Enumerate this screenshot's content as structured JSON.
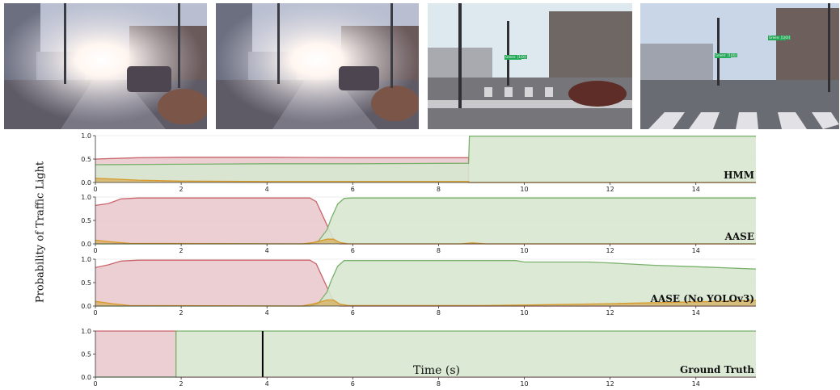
{
  "figure": {
    "ylabel": "Probability of Traffic Light",
    "xlabel": "Time (s)"
  },
  "photos": [
    {
      "scene": "sun-glare-street-1"
    },
    {
      "scene": "sun-glare-street-2"
    },
    {
      "scene": "intersection-green-detection-1",
      "detections": [
        "Green: [1(0)]"
      ]
    },
    {
      "scene": "intersection-green-detection-2",
      "detections": [
        "Green: [1(0)]",
        "Green: [1(0)]"
      ]
    }
  ],
  "chart_data": [
    {
      "type": "area",
      "title": "HMM",
      "xlim": [
        0,
        15.4
      ],
      "ylim": [
        0,
        1
      ],
      "xticks": [
        0,
        2,
        4,
        6,
        8,
        10,
        12,
        14
      ],
      "yticks": [
        "0.0",
        "0.5",
        "1.0"
      ],
      "series": [
        {
          "color": "red",
          "points": [
            [
              0,
              0.5
            ],
            [
              1,
              0.53
            ],
            [
              2,
              0.54
            ],
            [
              4,
              0.54
            ],
            [
              6,
              0.53
            ],
            [
              8.7,
              0.53
            ],
            [
              8.7,
              0
            ],
            [
              15.4,
              0
            ]
          ]
        },
        {
          "color": "green",
          "points": [
            [
              0,
              0.38
            ],
            [
              2,
              0.39
            ],
            [
              4,
              0.4
            ],
            [
              6,
              0.4
            ],
            [
              8.7,
              0.41
            ],
            [
              8.72,
              0.99
            ],
            [
              10,
              0.99
            ],
            [
              12,
              0.99
            ],
            [
              15.4,
              0.99
            ]
          ]
        },
        {
          "color": "amber",
          "points": [
            [
              0,
              0.09
            ],
            [
              0.5,
              0.07
            ],
            [
              1,
              0.05
            ],
            [
              2,
              0.03
            ],
            [
              4,
              0.02
            ],
            [
              8.7,
              0.02
            ],
            [
              8.72,
              0
            ],
            [
              15.4,
              0
            ]
          ]
        }
      ]
    },
    {
      "type": "area",
      "title": "AASE",
      "xlim": [
        0,
        15.4
      ],
      "ylim": [
        0,
        1
      ],
      "xticks": [
        0,
        2,
        4,
        6,
        8,
        10,
        12,
        14
      ],
      "yticks": [
        "0.0",
        "0.5",
        "1.0"
      ],
      "series": [
        {
          "color": "red",
          "points": [
            [
              0,
              0.82
            ],
            [
              0.3,
              0.86
            ],
            [
              0.6,
              0.96
            ],
            [
              1,
              0.98
            ],
            [
              2,
              0.98
            ],
            [
              4,
              0.98
            ],
            [
              5,
              0.98
            ],
            [
              5.15,
              0.9
            ],
            [
              5.3,
              0.6
            ],
            [
              5.5,
              0.2
            ],
            [
              5.6,
              0.04
            ],
            [
              5.7,
              0
            ],
            [
              15.4,
              0
            ]
          ]
        },
        {
          "color": "green",
          "points": [
            [
              0,
              0
            ],
            [
              5.0,
              0
            ],
            [
              5.2,
              0.06
            ],
            [
              5.4,
              0.3
            ],
            [
              5.5,
              0.55
            ],
            [
              5.65,
              0.85
            ],
            [
              5.8,
              0.97
            ],
            [
              6,
              0.98
            ],
            [
              8,
              0.98
            ],
            [
              10,
              0.98
            ],
            [
              15.4,
              0.98
            ]
          ]
        },
        {
          "color": "amber",
          "points": [
            [
              0,
              0.08
            ],
            [
              0.4,
              0.04
            ],
            [
              0.8,
              0.01
            ],
            [
              4.8,
              0
            ],
            [
              5.1,
              0.03
            ],
            [
              5.4,
              0.1
            ],
            [
              5.55,
              0.1
            ],
            [
              5.7,
              0.03
            ],
            [
              5.9,
              0
            ],
            [
              8.5,
              0
            ],
            [
              8.8,
              0.02
            ],
            [
              9.1,
              0
            ],
            [
              15.4,
              0
            ]
          ]
        }
      ]
    },
    {
      "type": "area",
      "title": "AASE (No YOLOv3)",
      "xlim": [
        0,
        15.4
      ],
      "ylim": [
        0,
        1
      ],
      "xticks": [
        0,
        2,
        4,
        6,
        8,
        10,
        12,
        14
      ],
      "yticks": [
        "0.0",
        "0.5",
        "1.0"
      ],
      "series": [
        {
          "color": "red",
          "points": [
            [
              0,
              0.82
            ],
            [
              0.3,
              0.88
            ],
            [
              0.6,
              0.96
            ],
            [
              1,
              0.98
            ],
            [
              2,
              0.98
            ],
            [
              4,
              0.98
            ],
            [
              5,
              0.98
            ],
            [
              5.15,
              0.9
            ],
            [
              5.3,
              0.6
            ],
            [
              5.5,
              0.2
            ],
            [
              5.6,
              0.04
            ],
            [
              5.7,
              0
            ],
            [
              15.4,
              0
            ]
          ]
        },
        {
          "color": "green",
          "points": [
            [
              0,
              0
            ],
            [
              5.0,
              0
            ],
            [
              5.2,
              0.06
            ],
            [
              5.4,
              0.3
            ],
            [
              5.5,
              0.55
            ],
            [
              5.65,
              0.85
            ],
            [
              5.8,
              0.97
            ],
            [
              6,
              0.97
            ],
            [
              9.8,
              0.97
            ],
            [
              10,
              0.94
            ],
            [
              11.5,
              0.94
            ],
            [
              12,
              0.92
            ],
            [
              13,
              0.87
            ],
            [
              14,
              0.84
            ],
            [
              15.4,
              0.79
            ]
          ]
        },
        {
          "color": "amber",
          "points": [
            [
              0,
              0.1
            ],
            [
              0.4,
              0.05
            ],
            [
              0.8,
              0.01
            ],
            [
              4.8,
              0
            ],
            [
              5.1,
              0.05
            ],
            [
              5.4,
              0.13
            ],
            [
              5.55,
              0.13
            ],
            [
              5.7,
              0.04
            ],
            [
              5.9,
              0.01
            ],
            [
              9,
              0.01
            ],
            [
              10,
              0.02
            ],
            [
              12,
              0.05
            ],
            [
              14,
              0.09
            ],
            [
              15.4,
              0.12
            ]
          ]
        }
      ]
    },
    {
      "type": "area",
      "title": "Ground Truth",
      "xlim": [
        0,
        15.4
      ],
      "ylim": [
        0,
        1
      ],
      "xticks": [
        0,
        2,
        4,
        6,
        8,
        10,
        12,
        14
      ],
      "yticks": [
        "0.0",
        "0.5",
        "1.0"
      ],
      "series": [
        {
          "color": "red",
          "points": [
            [
              0,
              1
            ],
            [
              1.88,
              1
            ],
            [
              1.88,
              0
            ],
            [
              15.4,
              0
            ]
          ]
        },
        {
          "color": "green",
          "points": [
            [
              0,
              0
            ],
            [
              1.88,
              0
            ],
            [
              1.88,
              1
            ],
            [
              15.4,
              1
            ]
          ]
        }
      ],
      "markers": [
        {
          "x": 3.9,
          "color": "black"
        }
      ]
    }
  ],
  "colors": {
    "red_fill": "#e9c7cb",
    "red_line": "#c9656b",
    "green_fill": "#d7e7d0",
    "green_line": "#7ab16c",
    "amber_fill": "#d6ab55",
    "amber_line": "#d89a2b",
    "axis": "#333333",
    "grid": "#dddddd"
  }
}
